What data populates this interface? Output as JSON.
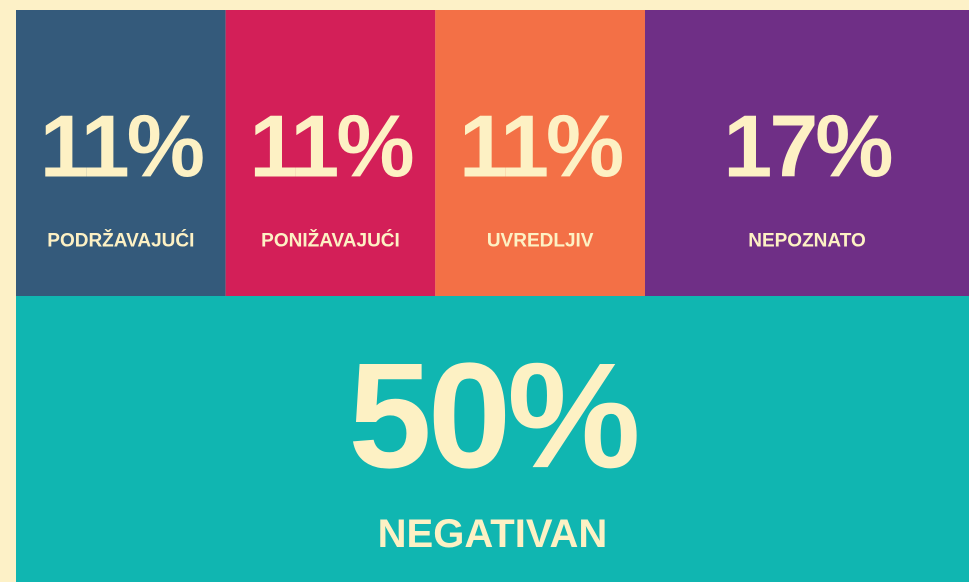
{
  "chart_data": {
    "type": "treemap",
    "categories": [
      "PODRŽAVAJUĆI",
      "PONIŽAVAJUĆI",
      "UVREDLJIV",
      "NEPOZNATO",
      "NEGATIVAN"
    ],
    "values": [
      11,
      11,
      11,
      17,
      50
    ],
    "value_labels": [
      "11%",
      "11%",
      "11%",
      "17%",
      "50%"
    ],
    "colors": [
      "#345a7b",
      "#d31f58",
      "#f37046",
      "#6f2f86",
      "#10b6b1"
    ],
    "text_color": "#fdf1c4",
    "background": "#fdf1c7"
  }
}
